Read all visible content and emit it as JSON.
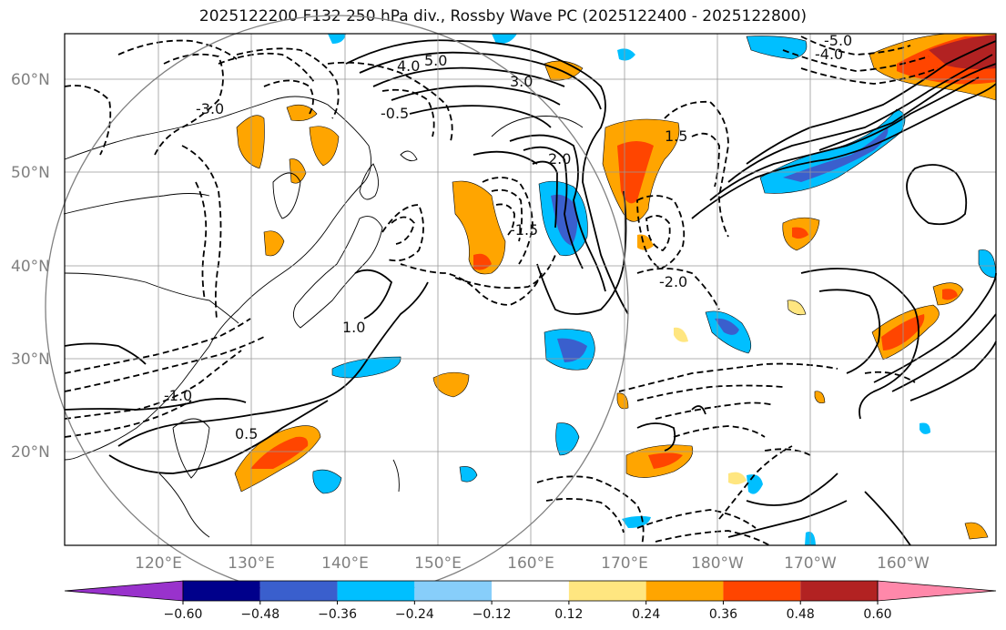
{
  "title": "2025122200 F132 250 hPa div., Rossby Wave PC (2025122400 - 2025122800)",
  "map": {
    "lat_labels": [
      "60°N",
      "50°N",
      "40°N",
      "30°N",
      "20°N"
    ],
    "lon_labels": [
      "120°E",
      "130°E",
      "140°E",
      "150°E",
      "160°E",
      "170°E",
      "180°W",
      "170°W",
      "160°W"
    ],
    "contour_labels": [
      "5.0",
      "4.0",
      "3.0",
      "2.0",
      "1.5",
      "1.0",
      "0.5",
      "-0.5",
      "-1.0",
      "-1.5",
      "-2.0",
      "-3.0",
      "-4.0",
      "-5.0"
    ]
  },
  "colorbar": {
    "ticks": [
      "−0.60",
      "−0.48",
      "−0.36",
      "−0.24",
      "−0.12",
      "0.12",
      "0.24",
      "0.36",
      "0.48",
      "0.60"
    ],
    "colors": [
      "#9932cc",
      "#00008b",
      "#3a5fcd",
      "#00bfff",
      "#87cefa",
      "#ffffff",
      "#ffe680",
      "#ffa500",
      "#ff4500",
      "#b22222",
      "#ff88aa"
    ]
  }
}
